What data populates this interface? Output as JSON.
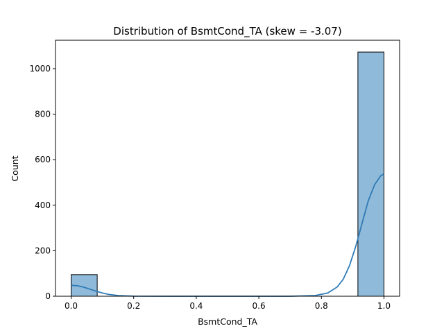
{
  "chart_data": {
    "type": "bar",
    "title": "Distribution of BsmtCond_TA (skew = -3.07)",
    "xlabel": "BsmtCond_TA",
    "ylabel": "Count",
    "xlim": [
      -0.05,
      1.05
    ],
    "ylim": [
      0,
      1125
    ],
    "x_ticks": [
      0.0,
      0.2,
      0.4,
      0.6,
      0.8,
      1.0
    ],
    "x_tick_labels": [
      "0.0",
      "0.2",
      "0.4",
      "0.6",
      "0.8",
      "1.0"
    ],
    "y_ticks": [
      0,
      200,
      400,
      600,
      800,
      1000
    ],
    "y_tick_labels": [
      "0",
      "200",
      "400",
      "600",
      "800",
      "1000"
    ],
    "grid": false,
    "bins": [
      {
        "x0": 0.0,
        "x1": 0.0833,
        "count": 95
      },
      {
        "x0": 0.9167,
        "x1": 1.0,
        "count": 1073
      }
    ],
    "kde": {
      "x": [
        0.0,
        0.02,
        0.04,
        0.06,
        0.08,
        0.1,
        0.12,
        0.15,
        0.2,
        0.3,
        0.5,
        0.7,
        0.78,
        0.82,
        0.85,
        0.87,
        0.89,
        0.91,
        0.93,
        0.95,
        0.97,
        0.99,
        1.0
      ],
      "y": [
        48,
        46,
        40,
        31,
        22,
        14,
        8,
        3,
        0.5,
        0,
        0,
        0,
        3,
        14,
        40,
        75,
        135,
        220,
        320,
        420,
        490,
        530,
        537
      ]
    },
    "colors": {
      "bar_fill": "#8fbad9",
      "bar_edge": "#000000",
      "kde_line": "#2f7bb6"
    }
  }
}
